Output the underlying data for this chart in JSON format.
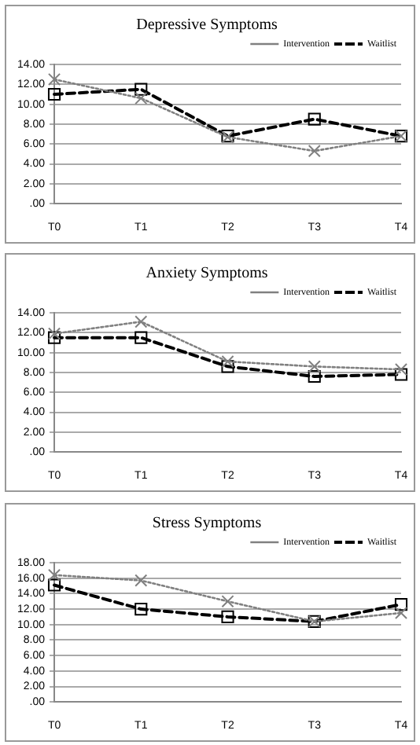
{
  "chart_data": [
    {
      "type": "line",
      "title": "Depressive Symptoms",
      "categories": [
        "T0",
        "T1",
        "T2",
        "T3",
        "T4"
      ],
      "series": [
        {
          "name": "Intervention",
          "color": "#808080",
          "marker": "cross",
          "line_style": "dotted",
          "values": [
            12.5,
            10.6,
            6.7,
            5.3,
            6.8
          ]
        },
        {
          "name": "Waitlist",
          "color": "#000000",
          "marker": "square",
          "line_style": "dashed",
          "values": [
            11.0,
            11.5,
            6.8,
            8.5,
            6.8
          ]
        }
      ],
      "ylim": [
        0,
        14
      ],
      "yticks": [
        {
          "value": 0,
          "label": ".00"
        },
        {
          "value": 2,
          "label": "2.00"
        },
        {
          "value": 4,
          "label": "4.00"
        },
        {
          "value": 6,
          "label": "6.00"
        },
        {
          "value": 8,
          "label": "8.00"
        },
        {
          "value": 10,
          "label": "10.00"
        },
        {
          "value": 12,
          "label": "12.00"
        },
        {
          "value": 14,
          "label": "14.00"
        }
      ],
      "grid": "y",
      "legend": "top right"
    },
    {
      "type": "line",
      "title": "Anxiety Symptoms",
      "categories": [
        "T0",
        "T1",
        "T2",
        "T3",
        "T4"
      ],
      "series": [
        {
          "name": "Intervention",
          "color": "#808080",
          "marker": "cross",
          "line_style": "dotted",
          "values": [
            11.9,
            13.1,
            9.1,
            8.6,
            8.3
          ]
        },
        {
          "name": "Waitlist",
          "color": "#000000",
          "marker": "square",
          "line_style": "dashed",
          "values": [
            11.5,
            11.5,
            8.6,
            7.6,
            7.8
          ]
        }
      ],
      "ylim": [
        0,
        14
      ],
      "yticks": [
        {
          "value": 0,
          "label": ".00"
        },
        {
          "value": 2,
          "label": "2.00"
        },
        {
          "value": 4,
          "label": "4.00"
        },
        {
          "value": 6,
          "label": "6.00"
        },
        {
          "value": 8,
          "label": "8.00"
        },
        {
          "value": 10,
          "label": "10.00"
        },
        {
          "value": 12,
          "label": "12.00"
        },
        {
          "value": 14,
          "label": "14.00"
        }
      ],
      "grid": "y",
      "legend": "top right"
    },
    {
      "type": "line",
      "title": "Stress Symptoms",
      "categories": [
        "T0",
        "T1",
        "T2",
        "T3",
        "T4"
      ],
      "series": [
        {
          "name": "Intervention",
          "color": "#808080",
          "marker": "cross",
          "line_style": "dotted",
          "values": [
            16.4,
            15.7,
            13.0,
            10.4,
            11.5
          ]
        },
        {
          "name": "Waitlist",
          "color": "#000000",
          "marker": "square",
          "line_style": "dashed",
          "values": [
            15.1,
            12.0,
            11.0,
            10.4,
            12.6
          ]
        }
      ],
      "ylim": [
        0,
        18
      ],
      "yticks": [
        {
          "value": 0,
          "label": ".00"
        },
        {
          "value": 2,
          "label": "2.00"
        },
        {
          "value": 4,
          "label": "4.00"
        },
        {
          "value": 6,
          "label": "6.00"
        },
        {
          "value": 8,
          "label": "8.00"
        },
        {
          "value": 10,
          "label": "10.00"
        },
        {
          "value": 12,
          "label": "12.00"
        },
        {
          "value": 14,
          "label": "14.00"
        },
        {
          "value": 16,
          "label": "16.00"
        },
        {
          "value": 18,
          "label": "18.00"
        }
      ],
      "grid": "y",
      "legend": "top right"
    }
  ]
}
